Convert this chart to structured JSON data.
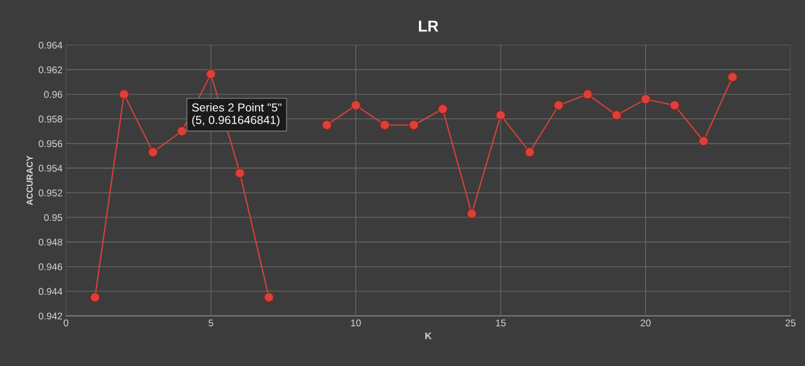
{
  "chart_data": {
    "type": "line",
    "title": "LR",
    "xlabel": "K",
    "ylabel": "ACCURACY",
    "x": [
      1,
      2,
      3,
      4,
      5,
      6,
      7,
      8,
      9,
      10,
      11,
      12,
      13,
      14,
      15,
      16,
      17,
      18,
      19,
      20,
      21,
      22,
      23
    ],
    "series": [
      {
        "color": "#d9423a",
        "values": [
          0.9435,
          0.96,
          0.9553,
          0.957,
          0.961646841,
          0.9536,
          0.9435,
          null,
          0.9575,
          0.9591,
          0.9575,
          0.9575,
          0.9588,
          0.9503,
          0.9583,
          0.9553,
          0.9591,
          0.96,
          0.9583,
          0.9596,
          0.9591,
          0.9562,
          0.9614
        ]
      }
    ],
    "xlim": [
      0,
      25
    ],
    "xticks": [
      0,
      5,
      10,
      15,
      20,
      25
    ],
    "ylim": [
      0.942,
      0.964
    ],
    "yticks": [
      0.942,
      0.944,
      0.946,
      0.948,
      0.95,
      0.952,
      0.954,
      0.956,
      0.958,
      0.96,
      0.962,
      0.964
    ],
    "grid": true,
    "marker": "circle",
    "line_style": "solid",
    "annotations": [
      {
        "text": "Series 2 Point \"5\"\n(5, 0.961646841)",
        "x": 5,
        "y": 0.961646841
      }
    ]
  }
}
